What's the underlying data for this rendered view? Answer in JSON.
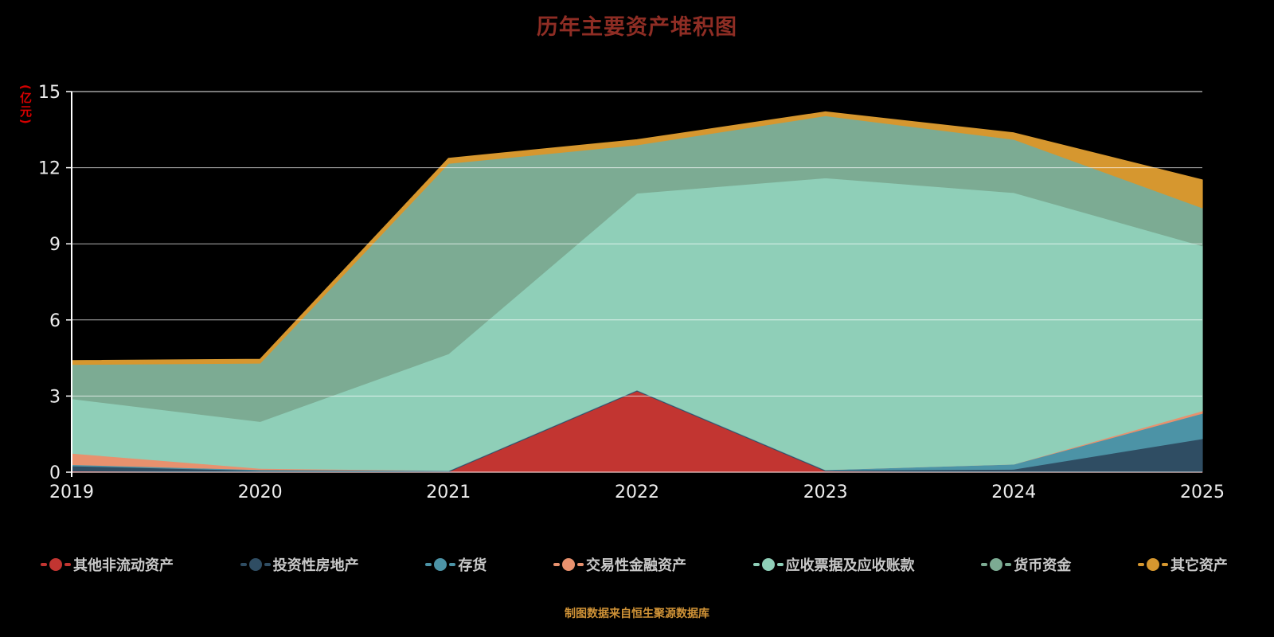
{
  "title": "历年主要资产堆积图",
  "footer": "制图数据来自恒生聚源数据库",
  "y_axis": {
    "unit": "(亿元)",
    "ticks": [
      0,
      3,
      6,
      9,
      12,
      15
    ]
  },
  "x_axis": {
    "labels": [
      "2019",
      "2020",
      "2021",
      "2022",
      "2023",
      "2024",
      "2025"
    ]
  },
  "colors": {
    "background": "#000000",
    "title": "#8e2d24",
    "axis_text": "#ededed",
    "grid": "#ffffff",
    "unit_label": "#d40000",
    "legend_text": "#c9c9c9",
    "footer": "#cf9236"
  },
  "chart_data": {
    "type": "area",
    "stacked": true,
    "title": "历年主要资产堆积图",
    "xlabel": "",
    "ylabel": "(亿元)",
    "ylim": [
      0,
      15
    ],
    "grid": true,
    "legend_position": "bottom",
    "categories": [
      "2019",
      "2020",
      "2021",
      "2022",
      "2023",
      "2024",
      "2025"
    ],
    "series": [
      {
        "name": "其他非流动资产",
        "color": "#c23531",
        "values": [
          0.05,
          0.02,
          0.02,
          3.2,
          0.05,
          0.02,
          0.02
        ]
      },
      {
        "name": "投资性房地产",
        "color": "#2f4d63",
        "values": [
          0.2,
          0.05,
          0.03,
          0.03,
          0.03,
          0.1,
          1.3
        ]
      },
      {
        "name": "存货",
        "color": "#4c93a6",
        "values": [
          0.05,
          0.03,
          0.02,
          0.02,
          0.02,
          0.2,
          1.0
        ]
      },
      {
        "name": "交易性金融资产",
        "color": "#e8916e",
        "values": [
          0.45,
          0.05,
          0.0,
          0.0,
          0.0,
          0.0,
          0.1
        ]
      },
      {
        "name": "应收票据及应收账款",
        "color": "#8fcfb8",
        "values": [
          2.15,
          1.85,
          4.6,
          7.75,
          11.5,
          10.7,
          6.5
        ]
      },
      {
        "name": "货币资金",
        "color": "#7cab93",
        "values": [
          1.35,
          2.3,
          7.5,
          1.9,
          2.45,
          2.1,
          1.5
        ]
      },
      {
        "name": "其它资产",
        "color": "#d6972f",
        "values": [
          0.15,
          0.15,
          0.2,
          0.2,
          0.15,
          0.25,
          1.1
        ]
      }
    ]
  }
}
